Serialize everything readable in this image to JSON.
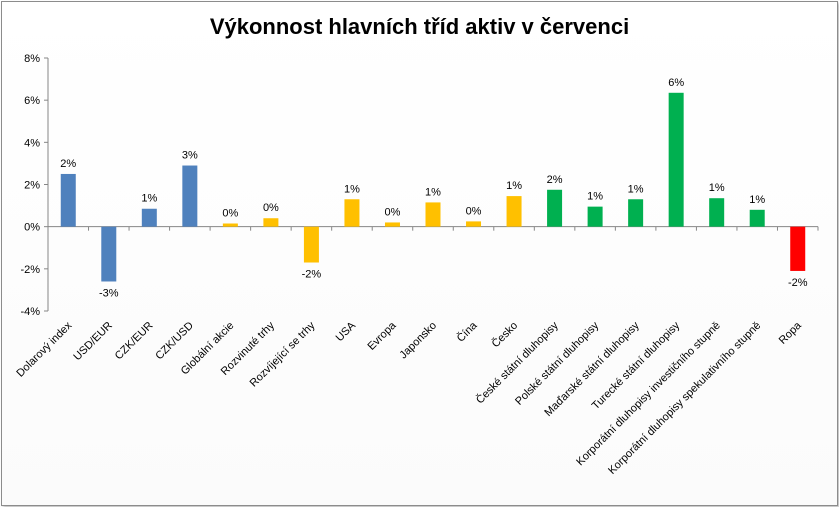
{
  "chart_data": {
    "type": "bar",
    "title": "Výkonnost hlavních tříd aktiv v červenci",
    "xlabel": "",
    "ylabel": "",
    "ylim": [
      -4,
      8
    ],
    "yticks": [
      -4,
      -2,
      0,
      2,
      4,
      6,
      8
    ],
    "ytick_labels": [
      "-4%",
      "-2%",
      "0%",
      "2%",
      "4%",
      "6%",
      "8%"
    ],
    "grid": false,
    "legend": "none",
    "categories": [
      "Dolarový index",
      "USD/EUR",
      "CZK/EUR",
      "CZK/USD",
      "Globální akcie",
      "Rozvinuté trhy",
      "Rozvíjející se trhy",
      "USA",
      "Evropa",
      "Japonsko",
      "Čína",
      "Česko",
      "České státní dluhopisy",
      "Polské státní dluhopisy",
      "Maďarské státní dluhopisy",
      "Turecké státní dluhopisy",
      "Korporátní dluhopisy investičního stupně",
      "Korporátní dluhopisy spekulativního stupně",
      "Ropa"
    ],
    "values": [
      2.5,
      -2.6,
      0.85,
      2.9,
      0.15,
      0.4,
      -1.7,
      1.3,
      0.2,
      1.15,
      0.25,
      1.45,
      1.75,
      0.95,
      1.3,
      6.35,
      1.35,
      0.8,
      -2.1
    ],
    "data_labels": [
      "2%",
      "-3%",
      "1%",
      "3%",
      "0%",
      "0%",
      "-2%",
      "1%",
      "0%",
      "1%",
      "0%",
      "1%",
      "2%",
      "1%",
      "1%",
      "6%",
      "1%",
      "1%",
      "-2%"
    ],
    "colors": [
      "#4f81bd",
      "#4f81bd",
      "#4f81bd",
      "#4f81bd",
      "#ffc000",
      "#ffc000",
      "#ffc000",
      "#ffc000",
      "#ffc000",
      "#ffc000",
      "#ffc000",
      "#ffc000",
      "#00b050",
      "#00b050",
      "#00b050",
      "#00b050",
      "#00b050",
      "#00b050",
      "#ff0000"
    ]
  }
}
